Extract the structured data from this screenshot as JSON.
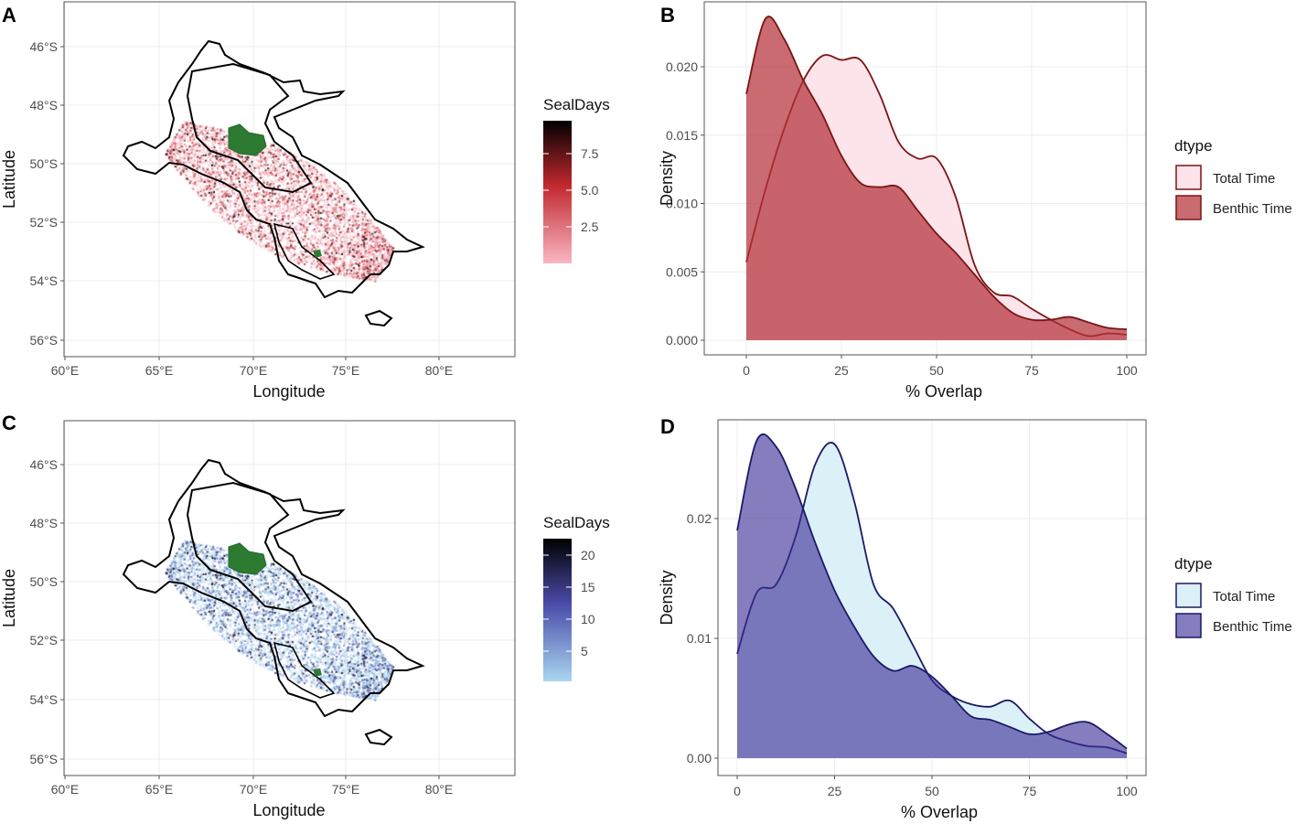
{
  "chart_data": [
    {
      "panel": "A",
      "type": "heatmap",
      "title": "",
      "xlabel": "Longitude",
      "ylabel": "Latitude",
      "x_ticks": [
        "60°E",
        "65°E",
        "70°E",
        "75°E",
        "80°E"
      ],
      "y_ticks": [
        "46°S",
        "48°S",
        "50°S",
        "52°S",
        "54°S",
        "56°S"
      ],
      "legend": {
        "title": "SealDays",
        "ticks": [
          "7.5",
          "5.0",
          "2.5"
        ],
        "range": [
          0,
          9.5
        ],
        "colors": [
          "#f9b6c3",
          "#c0282e",
          "#000000"
        ]
      },
      "grid": true
    },
    {
      "panel": "B",
      "type": "area",
      "xlabel": "% Overlap",
      "ylabel": "Density",
      "x_ticks": [
        "0",
        "25",
        "50",
        "75",
        "100"
      ],
      "y_ticks": [
        "0.000",
        "0.005",
        "0.010",
        "0.015",
        "0.020"
      ],
      "xlim": [
        0,
        100
      ],
      "ylim": [
        0,
        0.0245
      ],
      "legend": {
        "title": "dtype",
        "placement": "right",
        "entries": [
          "Total Time",
          "Benthic Time"
        ]
      },
      "colors": {
        "total_fill": "#fde3ea",
        "benthic_fill": "#b4323a",
        "stroke": "#7a1414"
      },
      "x": [
        0,
        5,
        10,
        15,
        20,
        25,
        30,
        35,
        40,
        45,
        50,
        55,
        60,
        65,
        70,
        75,
        80,
        85,
        90,
        95,
        100
      ],
      "series": [
        {
          "name": "Total Time",
          "values": [
            0.0057,
            0.011,
            0.0155,
            0.019,
            0.0208,
            0.0205,
            0.0205,
            0.018,
            0.0145,
            0.0133,
            0.0133,
            0.0105,
            0.0055,
            0.0035,
            0.0032,
            0.0023,
            0.0015,
            0.0008,
            0.0003,
            0.0005,
            0.0004
          ]
        },
        {
          "name": "Benthic Time",
          "values": [
            0.018,
            0.0235,
            0.022,
            0.019,
            0.0165,
            0.0135,
            0.0115,
            0.0112,
            0.0112,
            0.0095,
            0.0078,
            0.0064,
            0.0048,
            0.0032,
            0.002,
            0.0015,
            0.0015,
            0.0017,
            0.0013,
            0.0009,
            0.0008
          ]
        }
      ]
    },
    {
      "panel": "C",
      "type": "heatmap",
      "xlabel": "Longitude",
      "ylabel": "Latitude",
      "x_ticks": [
        "60°E",
        "65°E",
        "70°E",
        "75°E",
        "80°E"
      ],
      "y_ticks": [
        "46°S",
        "48°S",
        "50°S",
        "52°S",
        "54°S",
        "56°S"
      ],
      "legend": {
        "title": "SealDays",
        "ticks": [
          "20",
          "15",
          "10",
          "5"
        ],
        "range": [
          0,
          22.5
        ],
        "colors": [
          "#a9d6f0",
          "#4a4aa8",
          "#000000"
        ]
      },
      "grid": true
    },
    {
      "panel": "D",
      "type": "area",
      "xlabel": "% Overlap",
      "ylabel": "Density",
      "x_ticks": [
        "0",
        "25",
        "50",
        "75",
        "100"
      ],
      "y_ticks": [
        "0.00",
        "0.01",
        "0.02"
      ],
      "xlim": [
        0,
        100
      ],
      "ylim": [
        0,
        0.0282
      ],
      "legend": {
        "title": "dtype",
        "placement": "right",
        "entries": [
          "Total Time",
          "Benthic Time"
        ]
      },
      "colors": {
        "total_fill": "#dcf0f8",
        "benthic_fill": "#3c2d96",
        "stroke": "#1a1a66"
      },
      "x": [
        0,
        5,
        10,
        15,
        20,
        25,
        30,
        35,
        40,
        45,
        50,
        55,
        60,
        65,
        70,
        75,
        80,
        85,
        90,
        95,
        100
      ],
      "series": [
        {
          "name": "Total Time",
          "values": [
            0.0087,
            0.0138,
            0.0145,
            0.0185,
            0.0245,
            0.0262,
            0.0215,
            0.0145,
            0.0125,
            0.0095,
            0.0065,
            0.0052,
            0.0045,
            0.0043,
            0.0048,
            0.0033,
            0.002,
            0.0014,
            0.001,
            0.0009,
            0.0004
          ]
        },
        {
          "name": "Benthic Time",
          "values": [
            0.019,
            0.0265,
            0.026,
            0.0225,
            0.018,
            0.014,
            0.011,
            0.0085,
            0.0073,
            0.0077,
            0.0068,
            0.0052,
            0.0035,
            0.0032,
            0.0026,
            0.002,
            0.0022,
            0.0028,
            0.003,
            0.002,
            0.0008
          ]
        }
      ]
    }
  ]
}
